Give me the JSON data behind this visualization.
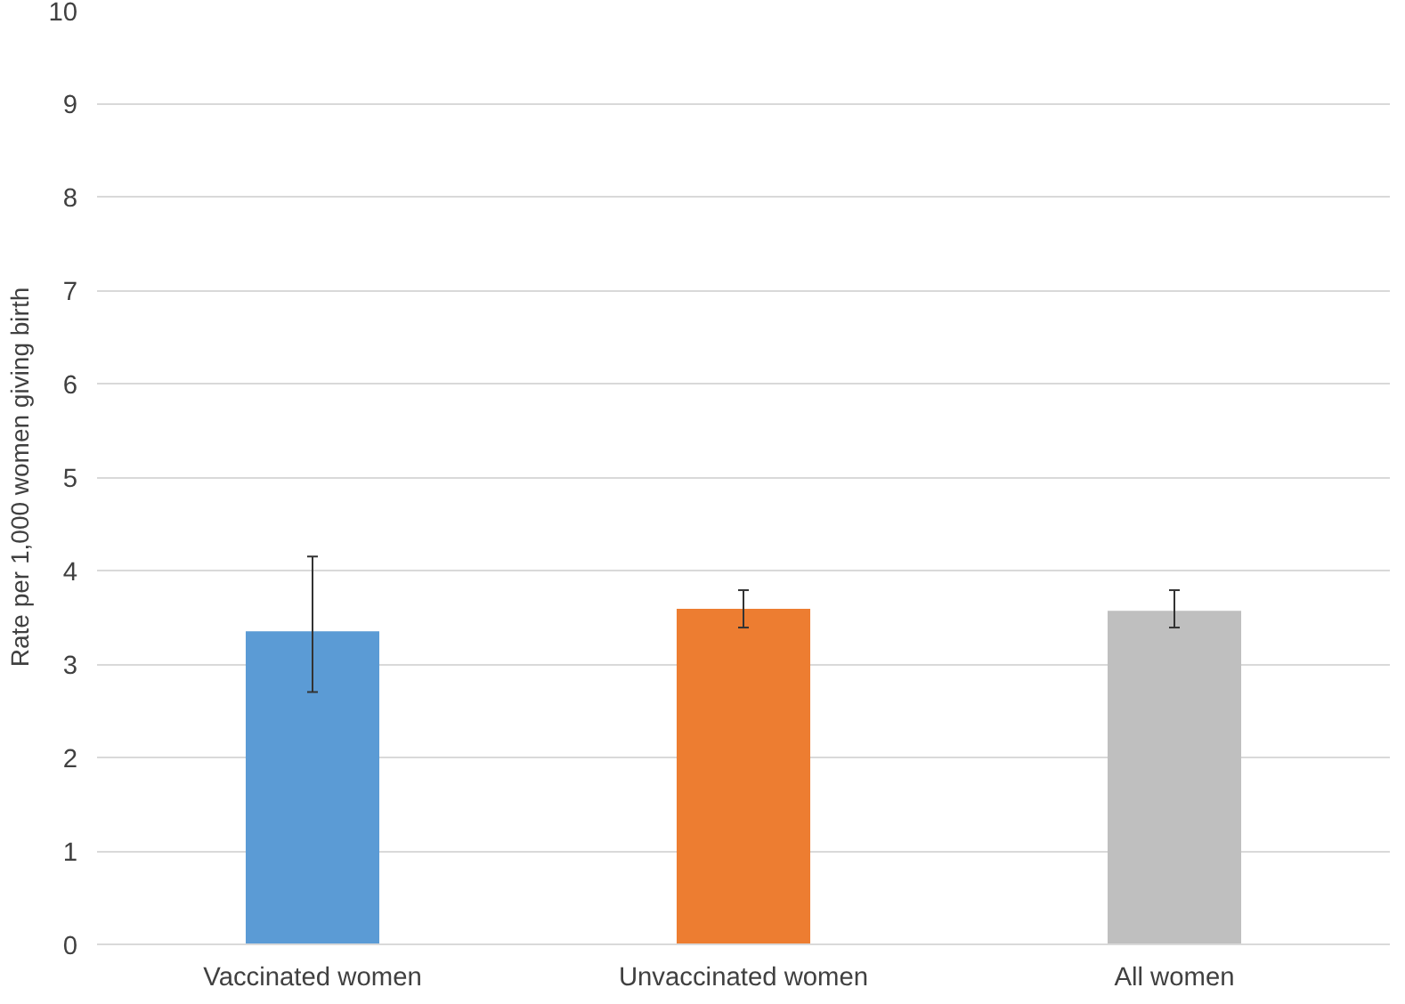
{
  "chart_data": {
    "type": "bar",
    "ylabel": "Rate per 1,000 women giving birth",
    "categories": [
      "Vaccinated women",
      "Unvaccinated women",
      "All women"
    ],
    "values": [
      3.35,
      3.59,
      3.57
    ],
    "colors": [
      "#5b9bd5",
      "#ed7d31",
      "#bfbfbf"
    ],
    "errors": [
      [
        2.7,
        4.15
      ],
      [
        3.39,
        3.79
      ],
      [
        3.39,
        3.79
      ]
    ],
    "ylim": [
      0,
      10
    ],
    "yticks": [
      0,
      1,
      2,
      3,
      4,
      5,
      6,
      7,
      8,
      9,
      10
    ],
    "grid": "y"
  }
}
